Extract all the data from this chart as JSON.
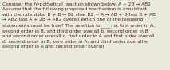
{
  "text": "Consider the hypothetical reaction shown below. A + 2B → AB2\nAssume that the following proposed mechanism is consistent\nwith the rate data. B + B → B2 slow B2 + A → AB + B fast B + AB\n→ AB2 fast A + 2B → AB2 overall Which one of the following\nstatements must be true? The reaction is ____. a. first order in A,\nsecond order in B, and third order overall b. second order in B\nand second order overall c. first order in A and first order overall\nd. second order in B, zero order in A, and third order overall e.\nsecond order in A and second order overall",
  "bg_color": "#ede8dd",
  "text_color": "#3a3028",
  "font_size": 4.2,
  "fig_width": 2.13,
  "fig_height": 0.88
}
